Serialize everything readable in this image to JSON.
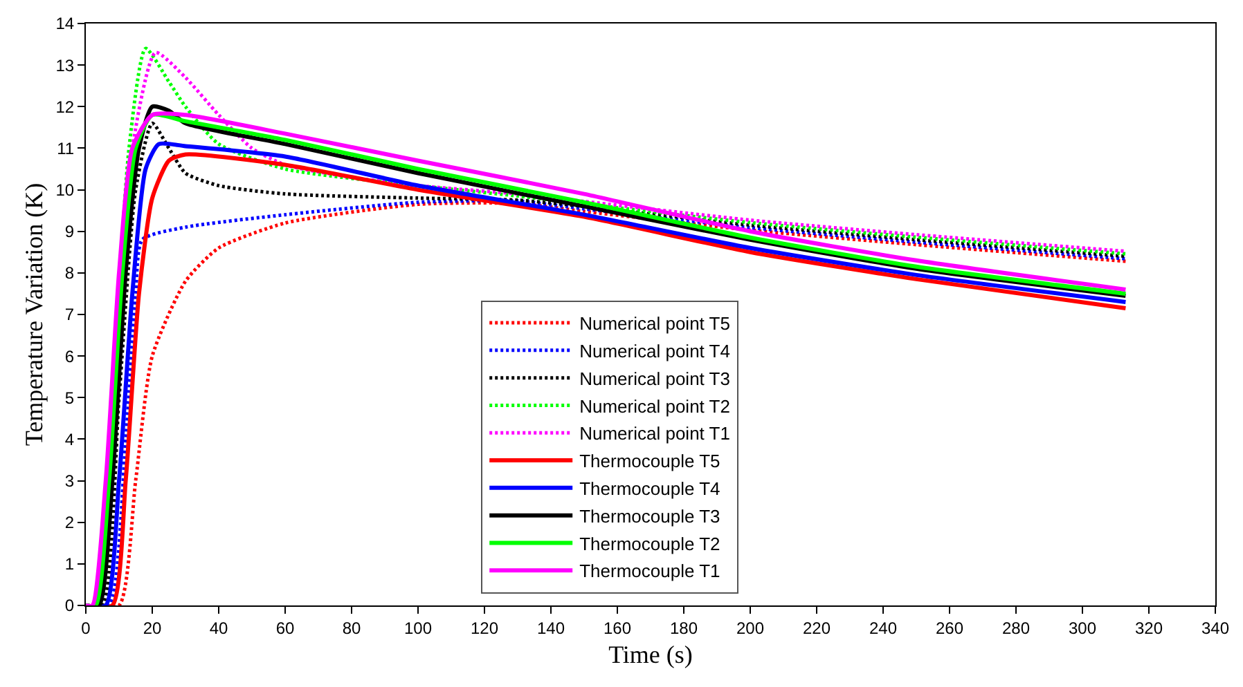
{
  "chart_data": {
    "type": "line",
    "xlabel": "Time (s)",
    "ylabel": "Temperature Variation (K)",
    "xlim": [
      0,
      340
    ],
    "xticks": [
      0,
      20,
      40,
      60,
      80,
      100,
      120,
      140,
      160,
      180,
      200,
      220,
      240,
      260,
      280,
      300,
      320,
      340
    ],
    "ylim": [
      0,
      14
    ],
    "yticks": [
      0,
      1,
      2,
      3,
      4,
      5,
      6,
      7,
      8,
      9,
      10,
      11,
      12,
      13,
      14
    ],
    "legend": "bottom",
    "marker": "none",
    "series": [
      {
        "name": "Numerical point T5",
        "color": "#ff0000",
        "line_style": "dotted",
        "x": [
          0,
          10,
          15,
          20,
          30,
          40,
          60,
          100,
          130,
          150,
          200,
          250,
          313
        ],
        "values": [
          0,
          0,
          3,
          6,
          7.8,
          8.6,
          9.2,
          9.65,
          9.67,
          9.48,
          9.03,
          8.68,
          8.28
        ]
      },
      {
        "name": "Numerical point T4",
        "color": "#0000ff",
        "line_style": "dotted",
        "x": [
          0,
          7,
          12,
          15,
          17,
          30,
          60,
          100,
          130,
          150,
          200,
          250,
          313
        ],
        "values": [
          0,
          0,
          4,
          7.5,
          8.8,
          9.1,
          9.4,
          9.7,
          9.73,
          9.54,
          9.09,
          8.74,
          8.34
        ]
      },
      {
        "name": "Numerical point T3",
        "color": "#000000",
        "line_style": "dotted",
        "x": [
          0,
          5,
          10,
          15,
          20,
          25,
          30,
          40,
          60,
          100,
          130,
          150,
          200,
          250,
          313
        ],
        "values": [
          0,
          0,
          5,
          10,
          11.6,
          11,
          10.4,
          10.1,
          9.9,
          9.8,
          9.75,
          9.6,
          9.15,
          8.8,
          8.4
        ]
      },
      {
        "name": "Numerical point T2",
        "color": "#00ff00",
        "line_style": "dotted",
        "x": [
          0,
          3,
          8,
          13,
          18,
          25,
          30,
          40,
          60,
          100,
          130,
          150,
          200,
          250,
          313
        ],
        "values": [
          0,
          0,
          5,
          11,
          13.4,
          12.6,
          12,
          11.1,
          10.5,
          10.1,
          9.85,
          9.66,
          9.21,
          8.86,
          8.46
        ]
      },
      {
        "name": "Numerical point T1",
        "color": "#ff00ff",
        "line_style": "dotted",
        "x": [
          0,
          3,
          8,
          14,
          21,
          30,
          40,
          50,
          60,
          80,
          100,
          130,
          150,
          200,
          250,
          313
        ],
        "values": [
          0,
          0,
          5,
          11,
          13.3,
          12.7,
          11.8,
          11,
          10.6,
          10.3,
          10.1,
          9.9,
          9.72,
          9.27,
          8.92,
          8.52
        ]
      },
      {
        "name": "Thermocouple T5",
        "color": "#ff0000",
        "line_style": "solid",
        "x": [
          0,
          8,
          12,
          16,
          20,
          25,
          30,
          60,
          100,
          150,
          200,
          250,
          313
        ],
        "values": [
          0,
          0,
          3,
          7.5,
          9.8,
          10.7,
          10.85,
          10.6,
          10,
          9.35,
          8.5,
          7.85,
          7.15
        ]
      },
      {
        "name": "Thermocouple T4",
        "color": "#0000ff",
        "line_style": "solid",
        "x": [
          0,
          6,
          10,
          14,
          18,
          22,
          30,
          60,
          100,
          150,
          200,
          250,
          313
        ],
        "values": [
          0,
          0,
          3,
          7.5,
          10.5,
          11.1,
          11.05,
          10.8,
          10.1,
          9.4,
          8.6,
          7.95,
          7.3
        ]
      },
      {
        "name": "Thermocouple T3",
        "color": "#000000",
        "line_style": "solid",
        "x": [
          0,
          4,
          8,
          12,
          16,
          20,
          25,
          30,
          60,
          100,
          150,
          200,
          250,
          313
        ],
        "values": [
          0,
          0,
          3,
          8,
          11,
          12,
          11.9,
          11.6,
          11.1,
          10.4,
          9.6,
          8.8,
          8.1,
          7.45
        ]
      },
      {
        "name": "Thermocouple T2",
        "color": "#00ff00",
        "line_style": "solid",
        "x": [
          0,
          3,
          7,
          11,
          15,
          20,
          30,
          60,
          100,
          150,
          200,
          250,
          313
        ],
        "values": [
          0,
          0,
          3,
          8,
          11,
          11.8,
          11.65,
          11.2,
          10.5,
          9.7,
          8.85,
          8.15,
          7.5
        ]
      },
      {
        "name": "Thermocouple T1",
        "color": "#ff00ff",
        "line_style": "solid",
        "x": [
          0,
          2,
          6,
          10,
          14,
          20,
          30,
          60,
          100,
          150,
          200,
          250,
          313
        ],
        "values": [
          0,
          0,
          3,
          8,
          11,
          11.8,
          11.8,
          11.35,
          10.7,
          9.9,
          9,
          8.3,
          7.6
        ]
      }
    ]
  }
}
